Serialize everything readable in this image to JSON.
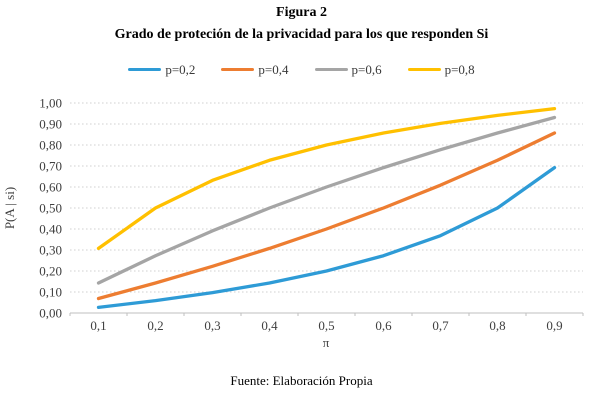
{
  "title": "Figura 2",
  "subtitle": "Grado de proteción de la privacidad para los que responden Si",
  "footer": "Fuente: Elaboración Propia",
  "colors": {
    "gridline": "#d2d2d2",
    "axis_line": "#bfbfbf",
    "axis_text": "#404040"
  },
  "chart_data": {
    "type": "line",
    "title": "Grado de proteción de la privacidad para los que responden Si",
    "xlabel": "π",
    "ylabel": "P(A | si)",
    "x": [
      0.1,
      0.2,
      0.3,
      0.4,
      0.5,
      0.6,
      0.7,
      0.8,
      0.9
    ],
    "x_tick_labels": [
      "0,1",
      "0,2",
      "0,3",
      "0,4",
      "0,5",
      "0,6",
      "0,7",
      "0,8",
      "0,9"
    ],
    "ylim": [
      0,
      1
    ],
    "y_tick_labels": [
      "0,00",
      "0,10",
      "0,20",
      "0,30",
      "0,40",
      "0,50",
      "0,60",
      "0,70",
      "0,80",
      "0,90",
      "1,00"
    ],
    "grid": "horizontal-dotted",
    "legend_position": "top",
    "series": [
      {
        "name": "p=0,2",
        "color": "#2E9BD6",
        "values": [
          0.027,
          0.0588,
          0.0968,
          0.1429,
          0.2,
          0.2727,
          0.3684,
          0.5,
          0.6923
        ]
      },
      {
        "name": "p=0,4",
        "color": "#ED7D31",
        "values": [
          0.069,
          0.1429,
          0.2222,
          0.3077,
          0.4,
          0.5,
          0.6087,
          0.7273,
          0.8571
        ]
      },
      {
        "name": "p=0,6",
        "color": "#A5A5A5",
        "values": [
          0.1429,
          0.2727,
          0.3913,
          0.5,
          0.6,
          0.6923,
          0.7778,
          0.8571,
          0.931
        ]
      },
      {
        "name": "p=0,8",
        "color": "#FFC000",
        "values": [
          0.3077,
          0.5,
          0.6316,
          0.7273,
          0.8,
          0.8571,
          0.9032,
          0.9412,
          0.973
        ]
      }
    ]
  }
}
